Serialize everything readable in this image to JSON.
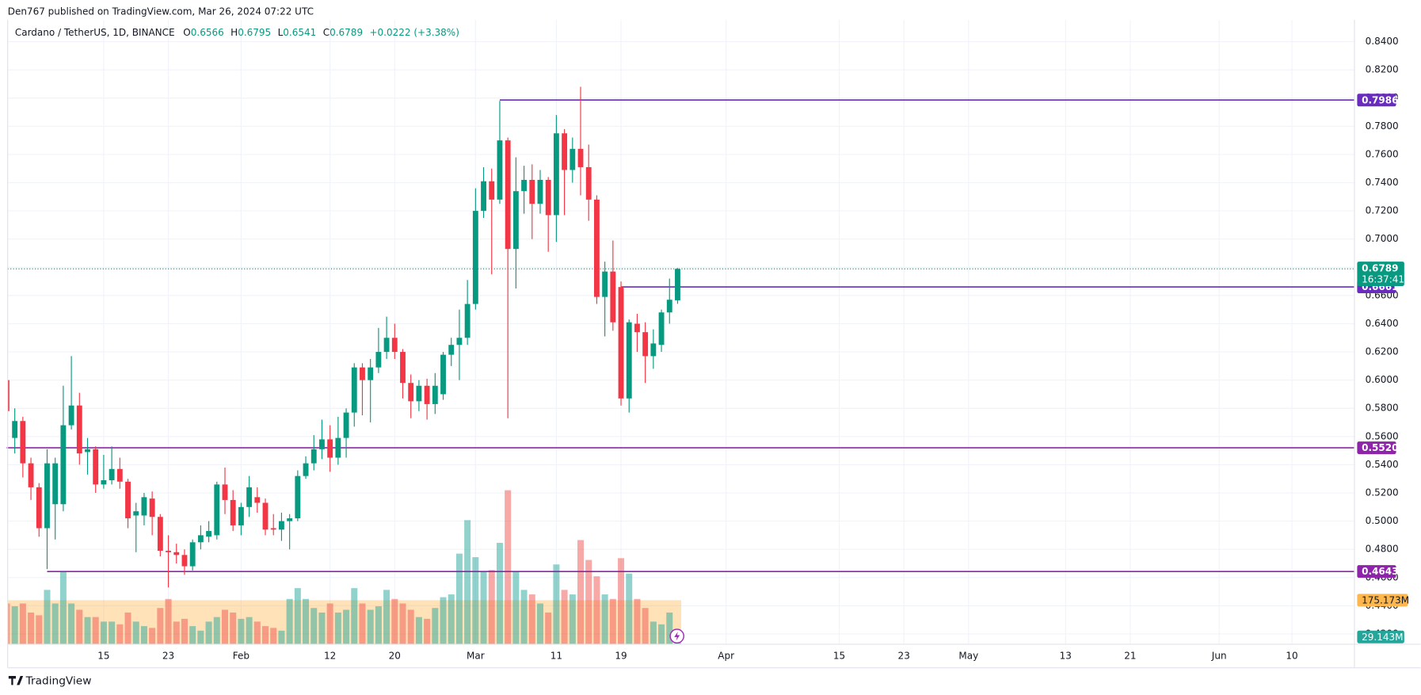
{
  "header": {
    "publisher": "Den767 published on TradingView.com, Mar 26, 2024 07:22 UTC",
    "brand": "TradingView"
  },
  "chart_data": {
    "type": "candlestick",
    "symbol": "Cardano / TetherUS, 1D, BINANCE",
    "legend_labels": {
      "open": "O",
      "high": "H",
      "low": "L",
      "close": "C"
    },
    "change_label": "+0.0222 (+3.38%)",
    "countdown": "16:37:41",
    "up_color": "#089981",
    "down_color": "#f23645",
    "open": [
      0.6,
      0.559,
      0.571,
      0.541,
      0.524,
      0.495,
      0.512,
      0.512,
      0.568,
      0.582,
      0.549,
      0.551,
      0.526,
      0.529,
      0.537,
      0.528,
      0.504,
      0.504,
      0.516,
      0.503,
      0.479,
      0.478,
      0.476,
      0.468,
      0.485,
      0.489,
      0.49,
      0.526,
      0.515,
      0.497,
      0.51,
      0.517,
      0.513,
      0.495,
      0.494,
      0.5,
      0.502,
      0.532,
      0.541,
      0.551,
      0.558,
      0.545,
      0.559,
      0.577,
      0.609,
      0.6,
      0.609,
      0.62,
      0.63,
      0.62,
      0.598,
      0.585,
      0.596,
      0.583,
      0.59,
      0.618,
      0.625,
      0.63,
      0.654,
      0.72,
      0.741,
      0.728,
      0.77,
      0.693,
      0.734,
      0.742,
      0.725,
      0.742,
      0.717,
      0.775,
      0.749,
      0.764,
      0.751,
      0.728,
      0.659,
      0.677,
      0.666,
      0.587,
      0.64,
      0.634,
      0.617,
      0.625,
      0.648,
      0.6566
    ],
    "high": [
      0.606,
      0.58,
      0.574,
      0.545,
      0.527,
      0.551,
      0.545,
      0.596,
      0.617,
      0.591,
      0.559,
      0.553,
      0.547,
      0.553,
      0.545,
      0.53,
      0.513,
      0.52,
      0.521,
      0.505,
      0.49,
      0.484,
      0.48,
      0.487,
      0.497,
      0.5,
      0.528,
      0.538,
      0.522,
      0.513,
      0.532,
      0.524,
      0.516,
      0.505,
      0.506,
      0.505,
      0.536,
      0.546,
      0.561,
      0.572,
      0.568,
      0.574,
      0.58,
      0.612,
      0.612,
      0.615,
      0.637,
      0.645,
      0.64,
      0.622,
      0.604,
      0.6,
      0.601,
      0.605,
      0.62,
      0.63,
      0.65,
      0.671,
      0.736,
      0.751,
      0.75,
      0.798,
      0.772,
      0.758,
      0.752,
      0.753,
      0.749,
      0.744,
      0.788,
      0.778,
      0.772,
      0.808,
      0.767,
      0.731,
      0.684,
      0.699,
      0.67,
      0.643,
      0.647,
      0.641,
      0.636,
      0.65,
      0.672,
      0.6795
    ],
    "low": [
      0.555,
      0.548,
      0.531,
      0.515,
      0.489,
      0.466,
      0.487,
      0.507,
      0.565,
      0.54,
      0.533,
      0.52,
      0.523,
      0.526,
      0.523,
      0.495,
      0.478,
      0.497,
      0.49,
      0.475,
      0.453,
      0.47,
      0.462,
      0.465,
      0.48,
      0.485,
      0.487,
      0.505,
      0.493,
      0.49,
      0.503,
      0.506,
      0.49,
      0.49,
      0.486,
      0.48,
      0.5,
      0.53,
      0.536,
      0.544,
      0.535,
      0.54,
      0.545,
      0.567,
      0.575,
      0.57,
      0.605,
      0.615,
      0.615,
      0.587,
      0.573,
      0.578,
      0.572,
      0.576,
      0.586,
      0.61,
      0.6,
      0.625,
      0.65,
      0.715,
      0.675,
      0.725,
      0.573,
      0.665,
      0.718,
      0.7,
      0.718,
      0.691,
      0.698,
      0.717,
      0.74,
      0.731,
      0.713,
      0.654,
      0.631,
      0.635,
      0.582,
      0.577,
      0.62,
      0.598,
      0.608,
      0.62,
      0.64,
      0.6541
    ],
    "close": [
      0.578,
      0.571,
      0.541,
      0.524,
      0.495,
      0.541,
      0.541,
      0.568,
      0.582,
      0.548,
      0.551,
      0.526,
      0.529,
      0.537,
      0.528,
      0.502,
      0.507,
      0.517,
      0.503,
      0.479,
      0.478,
      0.476,
      0.468,
      0.485,
      0.49,
      0.493,
      0.526,
      0.515,
      0.497,
      0.51,
      0.524,
      0.513,
      0.494,
      0.494,
      0.5,
      0.502,
      0.532,
      0.541,
      0.551,
      0.558,
      0.545,
      0.559,
      0.577,
      0.609,
      0.6,
      0.609,
      0.62,
      0.63,
      0.62,
      0.598,
      0.585,
      0.596,
      0.583,
      0.596,
      0.618,
      0.625,
      0.63,
      0.654,
      0.72,
      0.741,
      0.728,
      0.77,
      0.693,
      0.734,
      0.742,
      0.725,
      0.742,
      0.717,
      0.775,
      0.749,
      0.764,
      0.751,
      0.728,
      0.659,
      0.677,
      0.641,
      0.587,
      0.641,
      0.634,
      0.617,
      0.626,
      0.648,
      0.657,
      0.6789
    ],
    "volume": [
      162,
      151,
      162,
      126,
      115,
      216,
      162,
      288,
      162,
      137,
      108,
      108,
      90,
      90,
      79,
      126,
      90,
      72,
      65,
      144,
      180,
      90,
      101,
      72,
      54,
      90,
      108,
      137,
      126,
      101,
      108,
      90,
      72,
      65,
      54,
      180,
      223,
      180,
      144,
      126,
      162,
      126,
      137,
      223,
      162,
      137,
      151,
      216,
      180,
      162,
      137,
      108,
      101,
      144,
      187,
      198,
      360,
      493,
      346,
      288,
      295,
      403,
      612,
      288,
      216,
      198,
      162,
      126,
      317,
      216,
      198,
      414,
      335,
      270,
      198,
      180,
      342,
      281,
      180,
      144,
      90,
      79,
      126,
      29.143
    ],
    "volume_labels": {
      "last": {
        "value": 29.143,
        "label": "29.143M"
      },
      "average": {
        "value": 175.173,
        "label": "175.173M"
      }
    },
    "volume_lim": [
      0,
      900
    ],
    "ylim": [
      0.4127,
      0.8554
    ],
    "yticks": [
      {
        "value": 0.84,
        "label": "0.8400"
      },
      {
        "value": 0.82,
        "label": "0.8200"
      },
      {
        "value": 0.8,
        "label": "0.8000"
      },
      {
        "value": 0.78,
        "label": "0.7800"
      },
      {
        "value": 0.76,
        "label": "0.7600"
      },
      {
        "value": 0.74,
        "label": "0.7400"
      },
      {
        "value": 0.72,
        "label": "0.7200"
      },
      {
        "value": 0.7,
        "label": "0.7000"
      },
      {
        "value": 0.68,
        "label": "0.6800"
      },
      {
        "value": 0.66,
        "label": "0.6600"
      },
      {
        "value": 0.64,
        "label": "0.6400"
      },
      {
        "value": 0.62,
        "label": "0.6200"
      },
      {
        "value": 0.6,
        "label": "0.6000"
      },
      {
        "value": 0.58,
        "label": "0.5800"
      },
      {
        "value": 0.56,
        "label": "0.5600"
      },
      {
        "value": 0.54,
        "label": "0.5400"
      },
      {
        "value": 0.52,
        "label": "0.5200"
      },
      {
        "value": 0.5,
        "label": "0.5000"
      },
      {
        "value": 0.48,
        "label": "0.4800"
      },
      {
        "value": 0.46,
        "label": "0.4600"
      },
      {
        "value": 0.44,
        "label": "0.4400"
      },
      {
        "value": 0.42,
        "label": "0.4200"
      }
    ],
    "xticks": [
      {
        "value": 12,
        "label": "15"
      },
      {
        "value": 20,
        "label": "23"
      },
      {
        "value": 29,
        "label": "Feb"
      },
      {
        "value": 40,
        "label": "12"
      },
      {
        "value": 48,
        "label": "20"
      },
      {
        "value": 58,
        "label": "Mar"
      },
      {
        "value": 68,
        "label": "11"
      },
      {
        "value": 76,
        "label": "19"
      },
      {
        "value": 89,
        "label": "Apr"
      },
      {
        "value": 103,
        "label": "15"
      },
      {
        "value": 111,
        "label": "23"
      },
      {
        "value": 119,
        "label": "May"
      },
      {
        "value": 131,
        "label": "13"
      },
      {
        "value": 139,
        "label": "21"
      },
      {
        "value": 150,
        "label": "Jun"
      },
      {
        "value": 159,
        "label": "10"
      }
    ],
    "grid": true,
    "levels": [
      {
        "value": 0.7986,
        "start": 61,
        "color": "#6a2bbf"
      },
      {
        "value": 0.6661,
        "start": 76,
        "color": "#6a2bbf"
      },
      {
        "value": 0.552,
        "label": "0.5520",
        "start": 0,
        "color": "#8e24aa"
      },
      {
        "value": 0.4643,
        "start": 5,
        "color": "#8e24aa"
      }
    ]
  }
}
